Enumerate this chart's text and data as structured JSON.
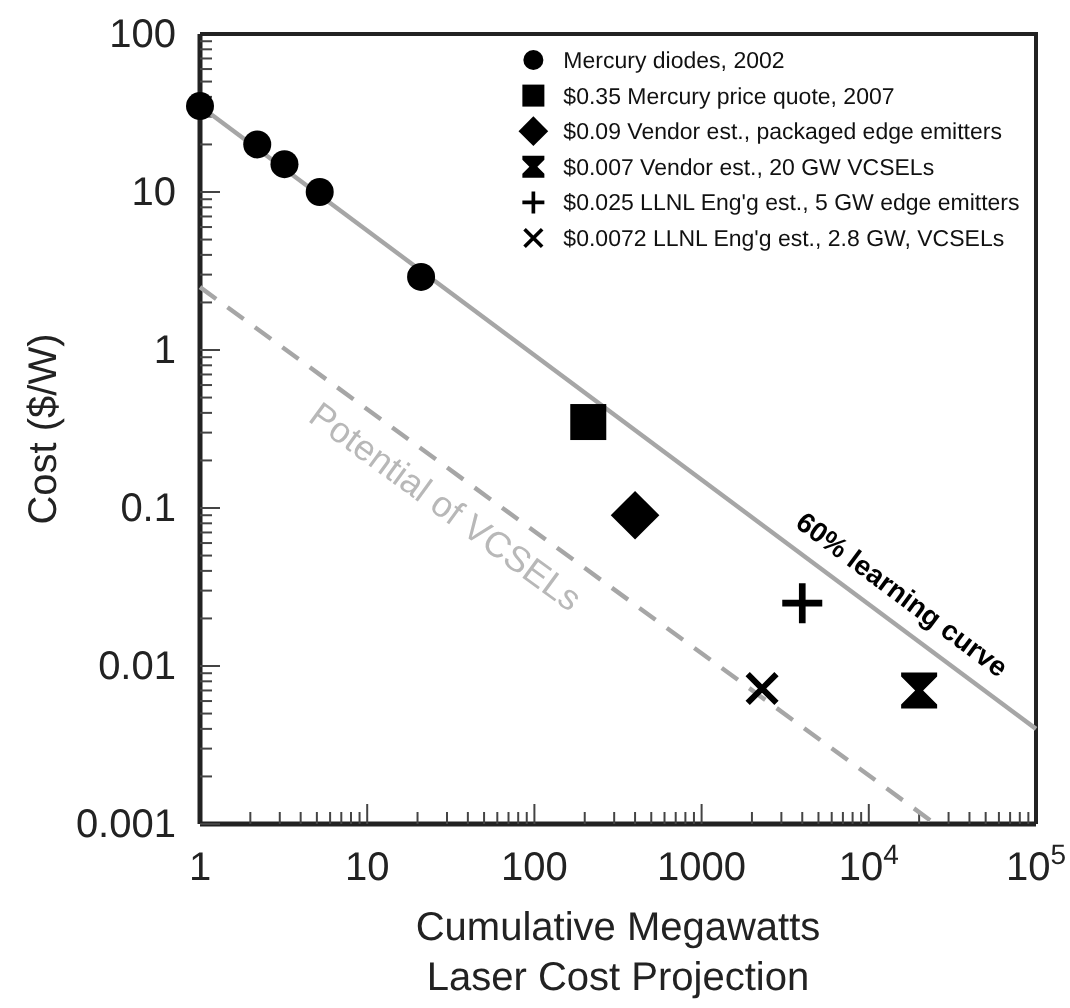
{
  "chart_data": {
    "type": "scatter",
    "title": "Laser Cost Projection",
    "xlabel": "Cumulative Megawatts",
    "ylabel": "Cost ($/W)",
    "log": "xy",
    "xlim": [
      1,
      100000
    ],
    "ylim": [
      0.001,
      100
    ],
    "legend": "top right",
    "grid": false,
    "xticks": [
      1,
      {
        "value": 2,
        "label": null
      },
      {
        "value": 3,
        "label": null
      },
      {
        "value": 4,
        "label": null
      },
      {
        "value": 5,
        "label": null
      },
      {
        "value": 6,
        "label": null
      },
      {
        "value": 7,
        "label": null
      },
      {
        "value": 8,
        "label": null
      },
      {
        "value": 9,
        "label": null
      },
      10,
      {
        "value": 20,
        "label": null
      },
      {
        "value": 30,
        "label": null
      },
      {
        "value": 40,
        "label": null
      },
      {
        "value": 50,
        "label": null
      },
      {
        "value": 60,
        "label": null
      },
      {
        "value": 70,
        "label": null
      },
      {
        "value": 80,
        "label": null
      },
      {
        "value": 90,
        "label": null
      },
      100,
      {
        "value": 200,
        "label": null
      },
      {
        "value": 300,
        "label": null
      },
      {
        "value": 400,
        "label": null
      },
      {
        "value": 500,
        "label": null
      },
      {
        "value": 600,
        "label": null
      },
      {
        "value": 700,
        "label": null
      },
      {
        "value": 800,
        "label": null
      },
      {
        "value": 900,
        "label": null
      },
      1000,
      {
        "value": 2000,
        "label": null
      },
      {
        "value": 3000,
        "label": null
      },
      {
        "value": 4000,
        "label": null
      },
      {
        "value": 5000,
        "label": null
      },
      {
        "value": 6000,
        "label": null
      },
      {
        "value": 7000,
        "label": null
      },
      {
        "value": 8000,
        "label": null
      },
      {
        "value": 9000,
        "label": null
      },
      {
        "value": 10000,
        "label": "10$^{4}$"
      },
      {
        "value": 20000,
        "label": null
      },
      {
        "value": 30000,
        "label": null
      },
      {
        "value": 40000,
        "label": null
      },
      {
        "value": 50000,
        "label": null
      },
      {
        "value": 60000,
        "label": null
      },
      {
        "value": 70000,
        "label": null
      },
      {
        "value": 80000,
        "label": null
      },
      {
        "value": 90000,
        "label": null
      },
      {
        "value": 100000,
        "label": "10$^{5}$"
      }
    ],
    "yticks": [
      0.001,
      {
        "value": 0.002,
        "label": null
      },
      {
        "value": 0.003,
        "label": null
      },
      {
        "value": 0.004,
        "label": null
      },
      {
        "value": 0.005,
        "label": null
      },
      {
        "value": 0.006,
        "label": null
      },
      {
        "value": 0.007,
        "label": null
      },
      {
        "value": 0.008,
        "label": null
      },
      {
        "value": 0.009,
        "label": null
      },
      0.01,
      {
        "value": 0.02,
        "label": null
      },
      {
        "value": 0.03,
        "label": null
      },
      {
        "value": 0.04,
        "label": null
      },
      {
        "value": 0.05,
        "label": null
      },
      {
        "value": 0.06,
        "label": null
      },
      {
        "value": 0.07,
        "label": null
      },
      {
        "value": 0.08,
        "label": null
      },
      {
        "value": 0.09,
        "label": null
      },
      0.1,
      {
        "value": 0.2,
        "label": null
      },
      {
        "value": 0.3,
        "label": null
      },
      {
        "value": 0.4,
        "label": null
      },
      {
        "value": 0.5,
        "label": null
      },
      {
        "value": 0.6,
        "label": null
      },
      {
        "value": 0.7,
        "label": null
      },
      {
        "value": 0.8,
        "label": null
      },
      {
        "value": 0.9,
        "label": null
      },
      1,
      {
        "value": 2,
        "label": null
      },
      {
        "value": 3,
        "label": null
      },
      {
        "value": 4,
        "label": null
      },
      {
        "value": 5,
        "label": null
      },
      {
        "value": 6,
        "label": null
      },
      {
        "value": 7,
        "label": null
      },
      {
        "value": 8,
        "label": null
      },
      {
        "value": 9,
        "label": null
      },
      10,
      {
        "value": 20,
        "label": null
      },
      {
        "value": 30,
        "label": null
      },
      {
        "value": 40,
        "label": null
      },
      {
        "value": 50,
        "label": null
      },
      {
        "value": 60,
        "label": null
      },
      {
        "value": 70,
        "label": null
      },
      {
        "value": 80,
        "label": null
      },
      {
        "value": 90,
        "label": null
      },
      100
    ],
    "series": [
      {
        "type": "line",
        "color": "#a6a6a6",
        "line_style": "solid",
        "marker": "none",
        "x": [
          1,
          100000
        ],
        "values": [
          35,
          0.004
        ]
      },
      {
        "type": "line",
        "color": "#a6a6a6",
        "line_style": "dashed",
        "marker": "none",
        "x": [
          1,
          25000
        ],
        "values": [
          2.5,
          0.001
        ]
      },
      {
        "name": "Mercury diodes, 2002",
        "color": "#000000",
        "marker": "circle",
        "x": [
          1,
          2.2,
          3.2,
          5.2,
          21
        ],
        "values": [
          35,
          20,
          15,
          10,
          2.9
        ]
      },
      {
        "name": "$0.35 Mercury price quote, 2007",
        "color": "#000000",
        "marker": "square",
        "x": [
          210
        ],
        "values": [
          0.35
        ]
      },
      {
        "name": "$0.09 Vendor est., packaged edge emitters",
        "color": "#000000",
        "marker": "diamond",
        "x": [
          400
        ],
        "values": [
          0.09
        ]
      },
      {
        "name": "$0.007 Vendor est., 20 GW VCSELs",
        "color": "#000000",
        "marker": "star",
        "x": [
          20000
        ],
        "values": [
          0.007
        ]
      },
      {
        "name": "$0.025 LLNL Eng'g est., 5 GW edge emitters",
        "color": "#000000",
        "marker": "plus",
        "x": [
          4000
        ],
        "values": [
          0.025
        ]
      },
      {
        "name": "$0.0072 LLNL Eng'g est., 2.8 GW, VCSELs",
        "color": "#000000",
        "marker": "x",
        "x": [
          2300
        ],
        "values": [
          0.0072
        ]
      }
    ],
    "annotations": [
      "60% learning curve",
      "Potential of VCSELs"
    ]
  }
}
